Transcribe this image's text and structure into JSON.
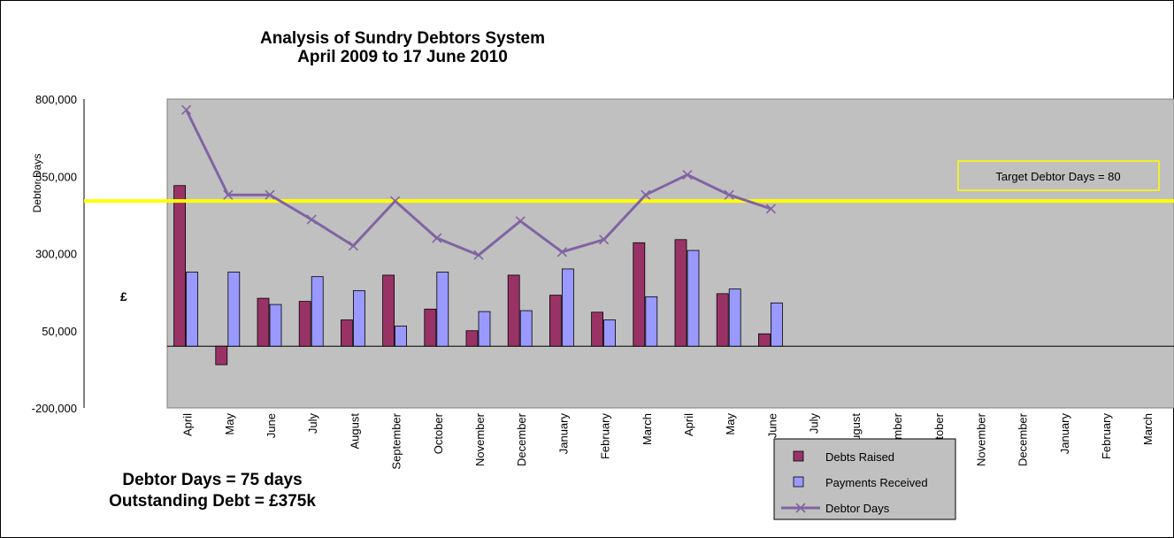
{
  "chart_data": {
    "type": "bar",
    "title": "Analysis of Sundry Debtors System",
    "subtitle": "April 2009 to 17 June 2010",
    "ylabel": "£",
    "side_label": "Debtor Days",
    "ylim": [
      -200000,
      800000
    ],
    "yticks": [
      -200000,
      50000,
      300000,
      550000,
      800000
    ],
    "ytick_labels": [
      "-200,000",
      "50,000",
      "300,000",
      "550,000",
      "800,000"
    ],
    "categories": [
      "April",
      "May",
      "June",
      "July",
      "August",
      "September",
      "October",
      "November",
      "December",
      "January",
      "February",
      "March",
      "April",
      "May",
      "June",
      "July",
      "August",
      "September",
      "October",
      "November",
      "December",
      "January",
      "February",
      "March"
    ],
    "series": [
      {
        "name": "Debts Raised",
        "type": "bar",
        "color": "#993366",
        "values": [
          520000,
          -60000,
          155000,
          145000,
          85000,
          230000,
          120000,
          50000,
          230000,
          165000,
          110000,
          335000,
          345000,
          170000,
          40000,
          null,
          null,
          null,
          null,
          null,
          null,
          null,
          null,
          null
        ]
      },
      {
        "name": "Payments Received",
        "type": "bar",
        "color": "#9999ff",
        "values": [
          240000,
          240000,
          135000,
          225000,
          180000,
          65000,
          240000,
          112000,
          115000,
          250000,
          85000,
          160000,
          310000,
          185000,
          140000,
          null,
          null,
          null,
          null,
          null,
          null,
          null,
          null,
          null
        ]
      },
      {
        "name": "Debtor Days",
        "type": "line",
        "color": "#8064a2",
        "values": [
          765000,
          490000,
          490000,
          410000,
          325000,
          470000,
          350000,
          295000,
          405000,
          305000,
          345000,
          490000,
          555000,
          490000,
          445000,
          null,
          null,
          null,
          null,
          null,
          null,
          null,
          null,
          null
        ]
      }
    ],
    "target_line": {
      "label": "Target Debtor Days = 80",
      "value": 470000,
      "color": "#ffff00"
    },
    "legend_position": "bottom-right",
    "grid": false
  },
  "notes": {
    "debtor_days": "Debtor Days = 75 days",
    "outstanding_debt": "Outstanding Debt = £375k"
  }
}
